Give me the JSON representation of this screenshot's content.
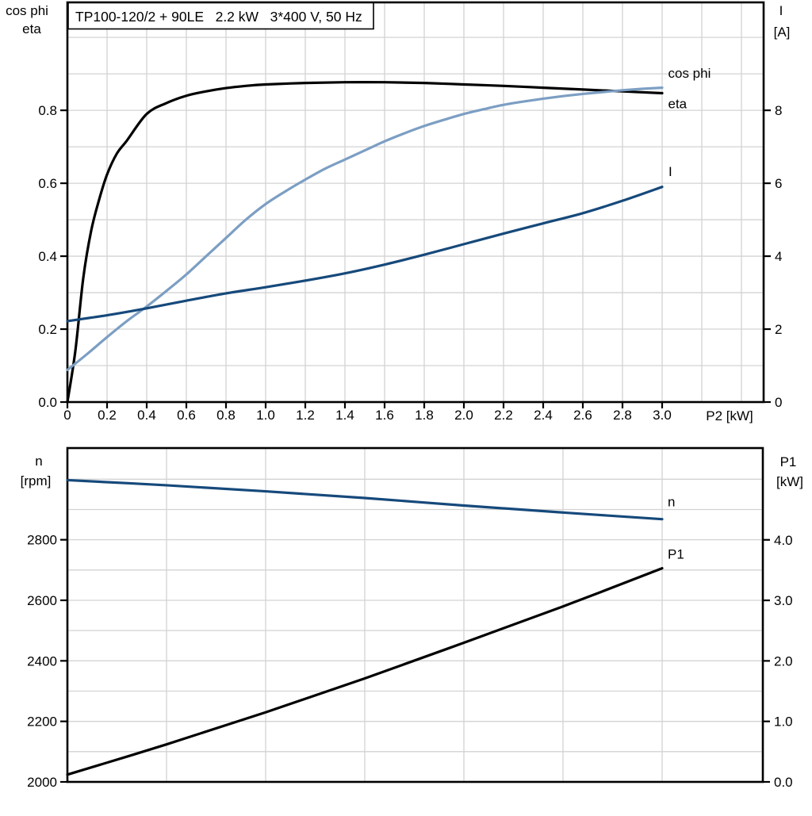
{
  "colors": {
    "black": "#000000",
    "light_blue": "#7C9EC3",
    "dark_blue": "#16497B",
    "grid": "#D3D3D3",
    "axis": "#000000",
    "background": "#FFFFFF"
  },
  "chart_data": [
    {
      "type": "line",
      "title": "TP100-120/2 + 90LE   2.2 kW   3*400 V, 50 Hz",
      "x_axis": {
        "label": "P2 [kW]",
        "range": [
          0,
          3.512
        ],
        "ticks": [
          {
            "v": 0,
            "label": "0"
          },
          {
            "v": 0.2,
            "label": "0.2"
          },
          {
            "v": 0.4,
            "label": "0.4"
          },
          {
            "v": 0.6,
            "label": "0.6"
          },
          {
            "v": 0.8,
            "label": "0.8"
          },
          {
            "v": 1.0,
            "label": "1.0"
          },
          {
            "v": 1.2,
            "label": "1.2"
          },
          {
            "v": 1.4,
            "label": "1.4"
          },
          {
            "v": 1.6,
            "label": "1.6"
          },
          {
            "v": 1.8,
            "label": "1.8"
          },
          {
            "v": 2.0,
            "label": "2.0"
          },
          {
            "v": 2.2,
            "label": "2.2"
          },
          {
            "v": 2.4,
            "label": "2.4"
          },
          {
            "v": 2.6,
            "label": "2.6"
          },
          {
            "v": 2.8,
            "label": "2.8"
          },
          {
            "v": 3.0,
            "label": "3.0"
          }
        ]
      },
      "left_axis": {
        "label_lines": [
          "cos phi",
          "eta"
        ],
        "range": [
          0,
          1.096
        ],
        "ticks": [
          {
            "v": 0.0,
            "label": "0.0"
          },
          {
            "v": 0.2,
            "label": "0.2"
          },
          {
            "v": 0.4,
            "label": "0.4"
          },
          {
            "v": 0.6,
            "label": "0.6"
          },
          {
            "v": 0.8,
            "label": "0.8"
          }
        ]
      },
      "right_axis": {
        "label_lines": [
          "I",
          "[A]"
        ],
        "range": [
          0,
          10.96
        ],
        "ticks": [
          {
            "v": 0,
            "label": "0"
          },
          {
            "v": 2,
            "label": "2"
          },
          {
            "v": 4,
            "label": "4"
          },
          {
            "v": 6,
            "label": "6"
          },
          {
            "v": 8,
            "label": "8"
          }
        ]
      },
      "grid": {
        "v": [
          0.2,
          0.4,
          0.6,
          0.8,
          1.0,
          1.2,
          1.4,
          1.6,
          1.8,
          2.0,
          2.2,
          2.4,
          2.6,
          2.8,
          3.0,
          3.2,
          3.4
        ],
        "h": [
          0.1,
          0.2,
          0.3,
          0.4,
          0.5,
          0.6,
          0.7,
          0.8,
          0.9,
          1.0
        ]
      },
      "series": [
        {
          "name": "eta",
          "color": "black",
          "axis": "left",
          "label": "eta",
          "label_anchor": {
            "x": 3.03,
            "y": 0.806
          },
          "points": [
            [
              0,
              0
            ],
            [
              0.04,
              0.14
            ],
            [
              0.08,
              0.34
            ],
            [
              0.12,
              0.47
            ],
            [
              0.16,
              0.555
            ],
            [
              0.2,
              0.624
            ],
            [
              0.25,
              0.682
            ],
            [
              0.3,
              0.717
            ],
            [
              0.4,
              0.79
            ],
            [
              0.5,
              0.82
            ],
            [
              0.6,
              0.84
            ],
            [
              0.7,
              0.852
            ],
            [
              0.8,
              0.861
            ],
            [
              0.9,
              0.867
            ],
            [
              1.0,
              0.871
            ],
            [
              1.2,
              0.875
            ],
            [
              1.4,
              0.877
            ],
            [
              1.6,
              0.877
            ],
            [
              1.8,
              0.875
            ],
            [
              2.0,
              0.871
            ],
            [
              2.2,
              0.867
            ],
            [
              2.4,
              0.862
            ],
            [
              2.6,
              0.857
            ],
            [
              2.8,
              0.852
            ],
            [
              3.0,
              0.847
            ]
          ]
        },
        {
          "name": "cos phi",
          "color": "light_blue",
          "axis": "left",
          "label": "cos phi",
          "label_anchor": {
            "x": 3.03,
            "y": 0.889
          },
          "points": [
            [
              0,
              0.088
            ],
            [
              0.1,
              0.132
            ],
            [
              0.2,
              0.178
            ],
            [
              0.3,
              0.222
            ],
            [
              0.4,
              0.262
            ],
            [
              0.5,
              0.305
            ],
            [
              0.6,
              0.35
            ],
            [
              0.7,
              0.4
            ],
            [
              0.8,
              0.45
            ],
            [
              0.9,
              0.5
            ],
            [
              1.0,
              0.543
            ],
            [
              1.1,
              0.578
            ],
            [
              1.2,
              0.61
            ],
            [
              1.3,
              0.64
            ],
            [
              1.4,
              0.665
            ],
            [
              1.5,
              0.69
            ],
            [
              1.6,
              0.715
            ],
            [
              1.7,
              0.737
            ],
            [
              1.8,
              0.757
            ],
            [
              1.9,
              0.774
            ],
            [
              2.0,
              0.79
            ],
            [
              2.1,
              0.803
            ],
            [
              2.2,
              0.815
            ],
            [
              2.3,
              0.824
            ],
            [
              2.4,
              0.832
            ],
            [
              2.5,
              0.839
            ],
            [
              2.6,
              0.845
            ],
            [
              2.7,
              0.85
            ],
            [
              2.8,
              0.855
            ],
            [
              2.9,
              0.859
            ],
            [
              3.0,
              0.862
            ]
          ]
        },
        {
          "name": "I",
          "color": "dark_blue",
          "axis": "right",
          "label": "I",
          "label_anchor": {
            "x": 3.032,
            "y": 6.2
          },
          "points": [
            [
              0,
              2.22
            ],
            [
              0.2,
              2.38
            ],
            [
              0.4,
              2.57
            ],
            [
              0.6,
              2.78
            ],
            [
              0.8,
              2.98
            ],
            [
              1.0,
              3.15
            ],
            [
              1.2,
              3.33
            ],
            [
              1.4,
              3.53
            ],
            [
              1.6,
              3.77
            ],
            [
              1.8,
              4.04
            ],
            [
              2.0,
              4.33
            ],
            [
              2.2,
              4.62
            ],
            [
              2.4,
              4.9
            ],
            [
              2.6,
              5.18
            ],
            [
              2.8,
              5.52
            ],
            [
              3.0,
              5.9
            ]
          ]
        }
      ]
    },
    {
      "type": "line",
      "title": "",
      "x_axis": {
        "label": "",
        "range": [
          0,
          3.508
        ],
        "ticks": []
      },
      "left_axis": {
        "label_lines": [
          "n",
          "[rpm]"
        ],
        "range": [
          2000,
          3103
        ],
        "ticks": [
          {
            "v": 2000,
            "label": "2000"
          },
          {
            "v": 2200,
            "label": "2200"
          },
          {
            "v": 2400,
            "label": "2400"
          },
          {
            "v": 2600,
            "label": "2600"
          },
          {
            "v": 2800,
            "label": "2800"
          }
        ]
      },
      "right_axis": {
        "label_lines": [
          "P1",
          "[kW]"
        ],
        "range": [
          0,
          5.517
        ],
        "ticks": [
          {
            "v": 0,
            "label": "0.0"
          },
          {
            "v": 1,
            "label": "1.0"
          },
          {
            "v": 2,
            "label": "2.0"
          },
          {
            "v": 3,
            "label": "3.0"
          },
          {
            "v": 4,
            "label": "4.0"
          }
        ]
      },
      "grid": {
        "v": [
          0.5,
          1.0,
          1.5,
          2.0,
          2.5,
          3.0
        ],
        "h": [
          2100,
          2200,
          2300,
          2400,
          2500,
          2600,
          2700,
          2800,
          2900,
          3000
        ]
      },
      "series": [
        {
          "name": "n",
          "color": "dark_blue",
          "axis": "left",
          "label": "n",
          "label_anchor": {
            "x": 3.028,
            "y": 2911
          },
          "points": [
            [
              0,
              2997
            ],
            [
              0.5,
              2980
            ],
            [
              1.0,
              2960
            ],
            [
              1.5,
              2938
            ],
            [
              2.0,
              2913
            ],
            [
              2.5,
              2890
            ],
            [
              3.0,
              2868
            ]
          ]
        },
        {
          "name": "P1",
          "color": "black",
          "axis": "right",
          "label": "P1",
          "label_anchor": {
            "x": 3.028,
            "y": 3.69
          },
          "points": [
            [
              0,
              0.12
            ],
            [
              0.5,
              0.62
            ],
            [
              1.0,
              1.15
            ],
            [
              1.5,
              1.71
            ],
            [
              2.0,
              2.3
            ],
            [
              2.5,
              2.9
            ],
            [
              3.0,
              3.53
            ]
          ]
        }
      ]
    }
  ]
}
